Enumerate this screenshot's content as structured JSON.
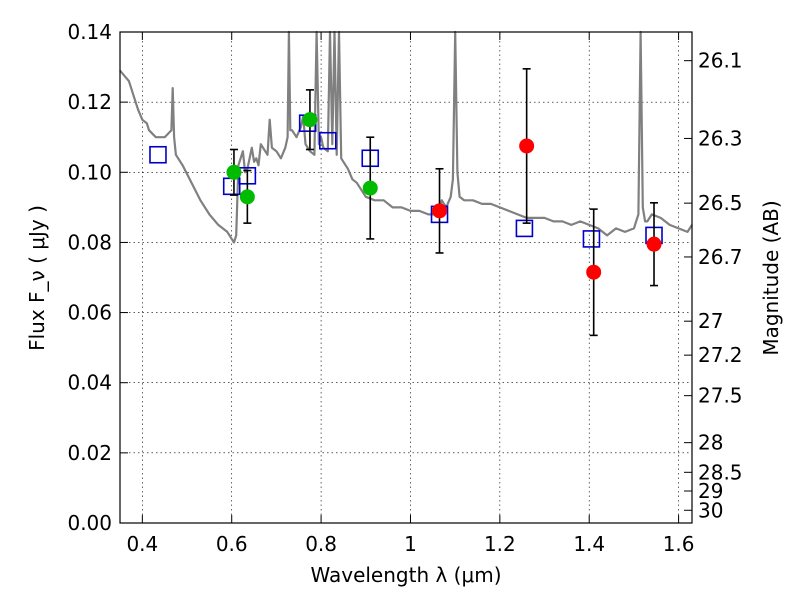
{
  "chart_data": {
    "type": "scatter",
    "xlabel": "Wavelength  λ (μm)",
    "ylabel": "Flux  F_ν  ( μJy )",
    "ylabel_right": "Magnitude (AB)",
    "xlim": [
      0.35,
      1.63
    ],
    "ylim": [
      0.0,
      0.14
    ],
    "grid": true,
    "x_ticks": [
      0.4,
      0.6,
      0.8,
      1.0,
      1.2,
      1.4,
      1.6
    ],
    "x_tick_labels": [
      "0.4",
      "0.6",
      "0.8",
      "1",
      "1.2",
      "1.4",
      "1.6"
    ],
    "y_ticks": [
      0.0,
      0.02,
      0.04,
      0.06,
      0.08,
      0.1,
      0.12,
      0.14
    ],
    "y_tick_labels": [
      "0.00",
      "0.02",
      "0.04",
      "0.06",
      "0.08",
      "0.10",
      "0.12",
      "0.14"
    ],
    "mag_ticks": [
      26.1,
      26.3,
      26.5,
      26.7,
      27,
      27.2,
      27.5,
      28,
      28.5,
      29,
      30
    ],
    "mag_tick_labels": [
      "26.1",
      "26.3",
      "26.5",
      "26.7",
      "27",
      "27.2",
      "27.5",
      "28",
      "28.5",
      "29",
      "30"
    ],
    "colors": {
      "model": "#808080",
      "model_points": "#0000cc",
      "optical_obs": "#00bb00",
      "nir_obs": "#ff0000",
      "errorbar": "#000000"
    },
    "series": [
      {
        "kind": "line",
        "color": "#808080",
        "x": [
          0.35,
          0.37,
          0.39,
          0.4,
          0.41,
          0.415,
          0.43,
          0.45,
          0.465,
          0.468,
          0.471,
          0.475,
          0.49,
          0.51,
          0.53,
          0.55,
          0.57,
          0.59,
          0.6,
          0.605,
          0.61,
          0.615,
          0.625,
          0.63,
          0.635,
          0.64,
          0.645,
          0.65,
          0.655,
          0.66,
          0.665,
          0.67,
          0.68,
          0.685,
          0.69,
          0.7,
          0.71,
          0.72,
          0.725,
          0.728,
          0.731,
          0.735,
          0.745,
          0.755,
          0.76,
          0.765,
          0.775,
          0.785,
          0.79,
          0.795,
          0.8,
          0.805,
          0.815,
          0.82,
          0.825,
          0.83,
          0.835,
          0.84,
          0.845,
          0.85,
          0.86,
          0.87,
          0.88,
          0.89,
          0.9,
          0.92,
          0.94,
          0.96,
          0.98,
          1.0,
          1.02,
          1.04,
          1.06,
          1.07,
          1.08,
          1.09,
          1.095,
          1.1,
          1.105,
          1.11,
          1.12,
          1.14,
          1.16,
          1.18,
          1.2,
          1.22,
          1.24,
          1.26,
          1.28,
          1.3,
          1.32,
          1.34,
          1.36,
          1.38,
          1.4,
          1.42,
          1.44,
          1.46,
          1.48,
          1.5,
          1.51,
          1.515,
          1.52,
          1.525,
          1.53,
          1.54,
          1.56,
          1.58,
          1.6,
          1.62,
          1.63
        ],
        "y": [
          0.129,
          0.126,
          0.118,
          0.115,
          0.114,
          0.112,
          0.11,
          0.11,
          0.112,
          0.124,
          0.11,
          0.105,
          0.102,
          0.097,
          0.092,
          0.088,
          0.085,
          0.083,
          0.081,
          0.08,
          0.082,
          0.102,
          0.106,
          0.1,
          0.101,
          0.104,
          0.107,
          0.103,
          0.104,
          0.102,
          0.108,
          0.107,
          0.105,
          0.115,
          0.107,
          0.106,
          0.104,
          0.107,
          0.11,
          0.14,
          0.112,
          0.112,
          0.11,
          0.113,
          0.116,
          0.108,
          0.106,
          0.105,
          0.14,
          0.108,
          0.11,
          0.107,
          0.106,
          0.14,
          0.108,
          0.14,
          0.105,
          0.14,
          0.104,
          0.103,
          0.101,
          0.098,
          0.097,
          0.095,
          0.093,
          0.092,
          0.092,
          0.09,
          0.09,
          0.089,
          0.089,
          0.088,
          0.088,
          0.092,
          0.09,
          0.093,
          0.098,
          0.14,
          0.1,
          0.093,
          0.092,
          0.092,
          0.091,
          0.091,
          0.09,
          0.089,
          0.088,
          0.087,
          0.087,
          0.087,
          0.086,
          0.086,
          0.085,
          0.086,
          0.085,
          0.084,
          0.082,
          0.084,
          0.083,
          0.084,
          0.088,
          0.14,
          0.09,
          0.086,
          0.086,
          0.088,
          0.087,
          0.085,
          0.084,
          0.083,
          0.085
        ]
      },
      {
        "kind": "open-square",
        "color": "#0000cc",
        "x": [
          0.435,
          0.6,
          0.635,
          0.77,
          0.815,
          0.91,
          1.065,
          1.255,
          1.405,
          1.545
        ],
        "y": [
          0.105,
          0.096,
          0.099,
          0.114,
          0.109,
          0.104,
          0.088,
          0.084,
          0.081,
          0.082
        ]
      },
      {
        "kind": "filled-circle",
        "color": "#00bb00",
        "x": [
          0.605,
          0.635,
          0.775,
          0.91
        ],
        "y": [
          0.1,
          0.093,
          0.115,
          0.0955
        ],
        "yerr": [
          0.0065,
          0.0075,
          0.0085,
          0.0145
        ]
      },
      {
        "kind": "filled-circle",
        "color": "#ff0000",
        "x": [
          1.065,
          1.26,
          1.41,
          1.545
        ],
        "y": [
          0.089,
          0.1075,
          0.0715,
          0.0795
        ],
        "yerr": [
          0.012,
          0.022,
          0.018,
          0.0118
        ]
      }
    ]
  }
}
